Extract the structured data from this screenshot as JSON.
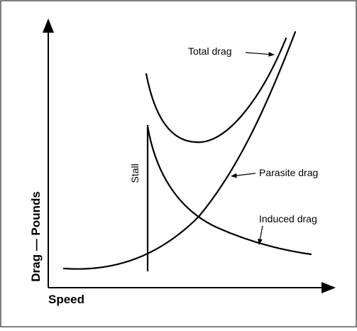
{
  "chart_data": {
    "type": "line",
    "xlabel": "Speed",
    "ylabel": "Drag — Pounds",
    "grid": false,
    "legend": "none",
    "series": [
      {
        "name": "Total drag"
      },
      {
        "name": "Parasite drag"
      },
      {
        "name": "Induced drag"
      }
    ],
    "annotations": [
      {
        "text": "Stall"
      }
    ]
  }
}
